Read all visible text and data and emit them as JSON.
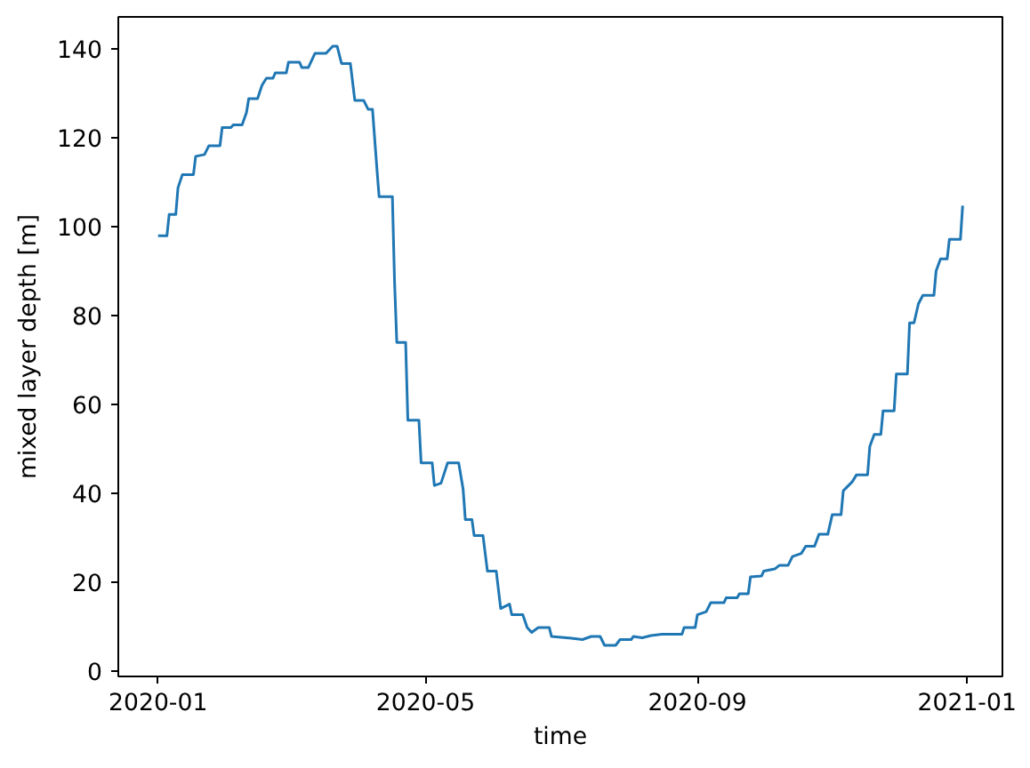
{
  "chart_data": {
    "type": "line",
    "xlabel": "time",
    "ylabel": "mixed layer depth [m]",
    "xlim": [
      "2019-12-14",
      "2021-01-17"
    ],
    "ylim": [
      -1.2,
      147.3
    ],
    "xticks": [
      "2020-01",
      "2020-05",
      "2020-09",
      "2021-01"
    ],
    "yticks": [
      0,
      20,
      40,
      60,
      80,
      100,
      120,
      140
    ],
    "series": [
      {
        "color": "#1f77b4",
        "x": [
          "2020-01-01",
          "2020-01-05",
          "2020-01-06",
          "2020-01-09",
          "2020-01-10",
          "2020-01-12",
          "2020-01-17",
          "2020-01-18",
          "2020-01-22",
          "2020-01-24",
          "2020-01-29",
          "2020-01-30",
          "2020-02-03",
          "2020-02-04",
          "2020-02-08",
          "2020-02-10",
          "2020-02-11",
          "2020-02-15",
          "2020-02-17",
          "2020-02-19",
          "2020-02-22",
          "2020-02-23",
          "2020-02-28",
          "2020-02-29",
          "2020-03-05",
          "2020-03-06",
          "2020-03-09",
          "2020-03-12",
          "2020-03-17",
          "2020-03-20",
          "2020-03-22",
          "2020-03-24",
          "2020-03-28",
          "2020-03-30",
          "2020-04-03",
          "2020-04-05",
          "2020-04-07",
          "2020-04-09",
          "2020-04-10",
          "2020-04-16",
          "2020-04-17",
          "2020-04-18",
          "2020-04-22",
          "2020-04-23",
          "2020-04-28",
          "2020-04-29",
          "2020-05-04",
          "2020-05-05",
          "2020-05-08",
          "2020-05-11",
          "2020-05-16",
          "2020-05-18",
          "2020-05-19",
          "2020-05-22",
          "2020-05-23",
          "2020-05-27",
          "2020-05-29",
          "2020-06-02",
          "2020-06-04",
          "2020-06-08",
          "2020-06-09",
          "2020-06-14",
          "2020-06-16",
          "2020-06-18",
          "2020-06-21",
          "2020-06-26",
          "2020-06-27",
          "2020-07-06",
          "2020-07-11",
          "2020-07-15",
          "2020-07-19",
          "2020-07-21",
          "2020-07-26",
          "2020-07-28",
          "2020-08-02",
          "2020-08-03",
          "2020-08-07",
          "2020-08-11",
          "2020-08-16",
          "2020-08-25",
          "2020-08-26",
          "2020-08-31",
          "2020-09-01",
          "2020-09-05",
          "2020-09-07",
          "2020-09-13",
          "2020-09-14",
          "2020-09-19",
          "2020-09-20",
          "2020-09-24",
          "2020-09-25",
          "2020-09-30",
          "2020-10-01",
          "2020-10-06",
          "2020-10-08",
          "2020-10-12",
          "2020-10-14",
          "2020-10-18",
          "2020-10-20",
          "2020-10-24",
          "2020-10-26",
          "2020-10-30",
          "2020-11-01",
          "2020-11-05",
          "2020-11-06",
          "2020-11-10",
          "2020-11-12",
          "2020-11-17",
          "2020-11-18",
          "2020-11-20",
          "2020-11-23",
          "2020-11-24",
          "2020-11-29",
          "2020-11-30",
          "2020-12-05",
          "2020-12-06",
          "2020-12-08",
          "2020-12-10",
          "2020-12-12",
          "2020-12-17",
          "2020-12-18",
          "2020-12-20",
          "2020-12-23",
          "2020-12-24",
          "2020-12-29",
          "2020-12-30"
        ],
        "values": [
          98.0,
          98.0,
          102.8,
          102.8,
          108.8,
          111.8,
          111.8,
          115.9,
          116.3,
          118.3,
          118.3,
          122.4,
          122.4,
          123.0,
          123.0,
          125.8,
          128.9,
          128.9,
          131.9,
          133.5,
          133.5,
          134.7,
          134.7,
          137.1,
          137.1,
          135.9,
          135.9,
          139.1,
          139.1,
          140.7,
          140.7,
          136.8,
          136.8,
          128.5,
          128.5,
          126.5,
          126.5,
          113.1,
          106.8,
          106.8,
          87.4,
          74.0,
          74.0,
          56.5,
          56.5,
          46.9,
          46.9,
          41.8,
          42.3,
          46.9,
          46.9,
          41.0,
          34.1,
          34.1,
          30.5,
          30.5,
          22.5,
          22.5,
          14.1,
          15.1,
          12.7,
          12.7,
          9.8,
          8.7,
          9.8,
          9.8,
          7.8,
          7.4,
          7.1,
          7.8,
          7.8,
          5.8,
          5.8,
          7.1,
          7.1,
          7.8,
          7.5,
          8.0,
          8.3,
          8.3,
          9.8,
          9.8,
          12.7,
          13.4,
          15.4,
          15.4,
          16.5,
          16.5,
          17.4,
          17.4,
          21.2,
          21.4,
          22.5,
          23.0,
          23.8,
          23.8,
          25.8,
          26.5,
          28.1,
          28.1,
          30.8,
          30.8,
          35.2,
          35.2,
          40.6,
          42.6,
          44.2,
          44.2,
          50.6,
          53.3,
          53.3,
          58.6,
          58.6,
          66.9,
          66.9,
          78.4,
          78.4,
          82.7,
          84.6,
          84.6,
          90.1,
          92.8,
          92.8,
          97.2,
          97.2,
          104.8
        ]
      }
    ]
  }
}
